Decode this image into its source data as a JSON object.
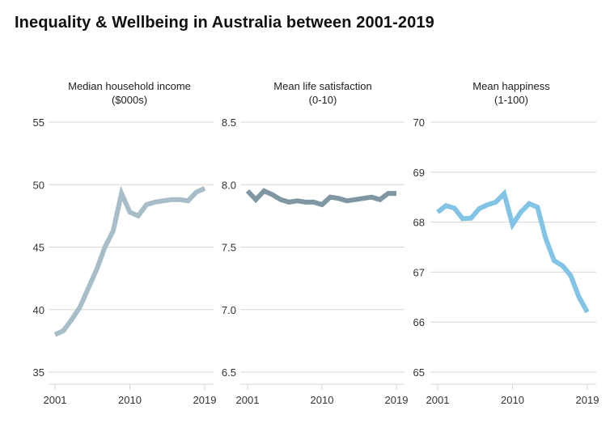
{
  "title": "Inequality & Wellbeing in Australia between 2001-2019",
  "chart_data": [
    {
      "type": "line",
      "title": "Median household income",
      "subtitle": "($000s)",
      "color": "#a7bec8",
      "x": [
        2001,
        2002,
        2003,
        2004,
        2005,
        2006,
        2007,
        2008,
        2009,
        2010,
        2011,
        2012,
        2013,
        2014,
        2015,
        2016,
        2017,
        2018,
        2019
      ],
      "values": [
        38.0,
        38.3,
        39.2,
        40.2,
        41.7,
        43.2,
        45.0,
        46.3,
        49.3,
        47.8,
        47.5,
        48.4,
        48.6,
        48.7,
        48.8,
        48.8,
        48.7,
        49.4,
        49.7
      ],
      "yticks": [
        "35",
        "40",
        "45",
        "50",
        "55"
      ],
      "ytick_values": [
        35,
        40,
        45,
        50,
        55
      ],
      "xticks": [
        "2001",
        "2010",
        "2019"
      ],
      "xtick_values": [
        2001,
        2010,
        2019
      ],
      "ylim": [
        35,
        55
      ],
      "grid": true
    },
    {
      "type": "line",
      "title": "Mean life satisfaction",
      "subtitle": "(0-10)",
      "color": "#7e97a2",
      "x": [
        2001,
        2002,
        2003,
        2004,
        2005,
        2006,
        2007,
        2008,
        2009,
        2010,
        2011,
        2012,
        2013,
        2014,
        2015,
        2016,
        2017,
        2018,
        2019
      ],
      "values": [
        7.95,
        7.88,
        7.95,
        7.92,
        7.88,
        7.86,
        7.87,
        7.86,
        7.86,
        7.84,
        7.9,
        7.89,
        7.87,
        7.88,
        7.89,
        7.9,
        7.88,
        7.93,
        7.93
      ],
      "yticks": [
        "6.5",
        "7.0",
        "7.5",
        "8.0",
        "8.5"
      ],
      "ytick_values": [
        6.5,
        7.0,
        7.5,
        8.0,
        8.5
      ],
      "xticks": [
        "2001",
        "2010",
        "2019"
      ],
      "xtick_values": [
        2001,
        2010,
        2019
      ],
      "ylim": [
        6.5,
        8.5
      ],
      "grid": true
    },
    {
      "type": "line",
      "title": "Mean happiness",
      "subtitle": "(1-100)",
      "color": "#82c4e6",
      "x": [
        2001,
        2002,
        2003,
        2004,
        2005,
        2006,
        2007,
        2008,
        2009,
        2010,
        2011,
        2012,
        2013,
        2014,
        2015,
        2016,
        2017,
        2018,
        2019
      ],
      "values": [
        68.2,
        68.33,
        68.28,
        68.07,
        68.08,
        68.27,
        68.35,
        68.4,
        68.57,
        67.95,
        68.2,
        68.37,
        68.3,
        67.67,
        67.23,
        67.13,
        66.93,
        66.5,
        66.2
      ],
      "yticks": [
        "65",
        "66",
        "67",
        "68",
        "69",
        "70"
      ],
      "ytick_values": [
        65,
        66,
        67,
        68,
        69,
        70
      ],
      "xticks": [
        "2001",
        "2010",
        "2019"
      ],
      "xtick_values": [
        2001,
        2010,
        2019
      ],
      "ylim": [
        65,
        70
      ],
      "grid": true
    }
  ]
}
